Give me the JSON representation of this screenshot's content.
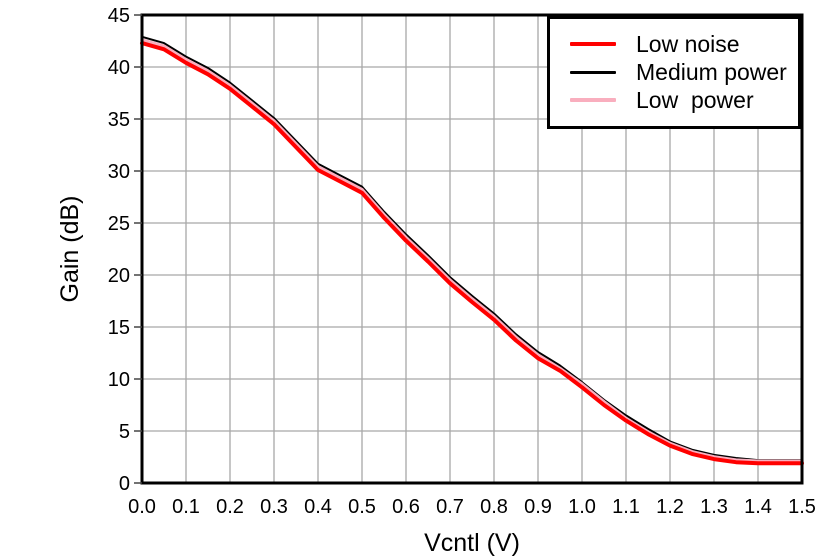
{
  "chart_data": {
    "type": "line",
    "title": "",
    "xlabel": "Vcntl (V)",
    "ylabel": "Gain (dB)",
    "xlim": [
      0.0,
      1.5
    ],
    "ylim": [
      0,
      45
    ],
    "grid": true,
    "legend_position": "top-right",
    "x_ticks": [
      "0.0",
      "0.1",
      "0.2",
      "0.3",
      "0.4",
      "0.5",
      "0.6",
      "0.7",
      "0.8",
      "0.9",
      "1.0",
      "1.1",
      "1.2",
      "1.3",
      "1.4",
      "1.5"
    ],
    "y_ticks": [
      "0",
      "5",
      "10",
      "15",
      "20",
      "25",
      "30",
      "35",
      "40",
      "45"
    ],
    "x": [
      0.0,
      0.05,
      0.1,
      0.15,
      0.2,
      0.25,
      0.3,
      0.35,
      0.4,
      0.45,
      0.5,
      0.55,
      0.6,
      0.65,
      0.7,
      0.75,
      0.8,
      0.85,
      0.9,
      0.95,
      1.0,
      1.05,
      1.1,
      1.15,
      1.2,
      1.25,
      1.3,
      1.35,
      1.4,
      1.45,
      1.5
    ],
    "series": [
      {
        "name": "Low noise",
        "color": "#ff0000",
        "width": 4,
        "values": [
          42.3,
          41.7,
          40.4,
          39.3,
          37.9,
          36.2,
          34.5,
          32.3,
          30.1,
          29.0,
          27.9,
          25.5,
          23.3,
          21.3,
          19.2,
          17.4,
          15.7,
          13.7,
          12.0,
          10.8,
          9.2,
          7.5,
          6.0,
          4.7,
          3.6,
          2.8,
          2.3,
          2.0,
          1.9,
          1.9,
          1.9
        ]
      },
      {
        "name": "Medium power",
        "color": "#000000",
        "width": 2,
        "values": [
          42.9,
          42.3,
          41.0,
          39.9,
          38.5,
          36.8,
          35.1,
          32.9,
          30.7,
          29.6,
          28.5,
          26.1,
          23.9,
          21.9,
          19.8,
          18.0,
          16.3,
          14.3,
          12.6,
          11.3,
          9.7,
          8.0,
          6.5,
          5.2,
          4.0,
          3.2,
          2.7,
          2.4,
          2.2,
          2.2,
          2.2
        ]
      },
      {
        "name": "Low  power",
        "color": "#f9aebe",
        "width": 3.5,
        "values": [
          42.6,
          42.0,
          40.7,
          39.6,
          38.2,
          36.5,
          34.8,
          32.6,
          30.4,
          29.3,
          28.2,
          25.8,
          23.6,
          21.6,
          19.5,
          17.7,
          16.0,
          14.0,
          12.3,
          11.0,
          9.5,
          7.8,
          6.2,
          4.9,
          3.8,
          3.0,
          2.5,
          2.2,
          2.1,
          2.1,
          2.1
        ]
      }
    ],
    "colors": {
      "axis": "#000000",
      "grid": "#a8a8a8",
      "background": "#ffffff"
    }
  }
}
